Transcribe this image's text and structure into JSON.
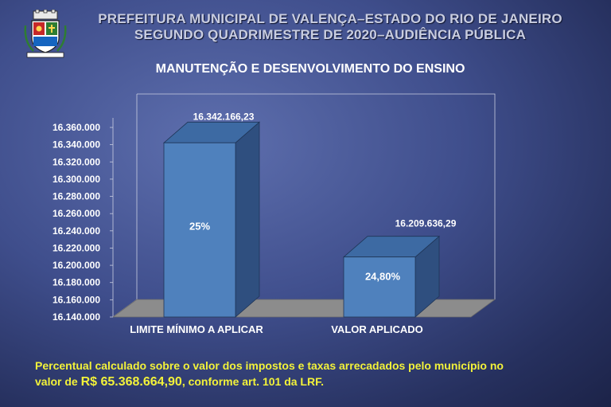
{
  "header": {
    "line1": "PREFEITURA MUNICIPAL DE VALENÇA–ESTADO DO RIO DE JANEIRO",
    "line2": "SEGUNDO QUADRIMESTRE DE 2020–AUDIÊNCIA PÚBLICA",
    "logo_icon": "municipal-coat-of-arms-icon"
  },
  "chart_data": {
    "type": "bar",
    "title": "MANUTENÇÃO E DESENVOLVIMENTO DO ENSINO",
    "categories": [
      "LIMITE MÍNIMO A APLICAR",
      "VALOR APLICADO"
    ],
    "values": [
      16342166.23,
      16209636.29
    ],
    "data_labels": [
      "16.342.166,23",
      "16.209.636,29"
    ],
    "inner_labels": [
      "25%",
      "24,80%"
    ],
    "y_ticks": [
      "16.140.000",
      "16.160.000",
      "16.180.000",
      "16.200.000",
      "16.220.000",
      "16.240.000",
      "16.260.000",
      "16.280.000",
      "16.300.000",
      "16.320.000",
      "16.340.000",
      "16.360.000"
    ],
    "ylim": [
      16140000,
      16360000
    ],
    "grid": false,
    "bar_color": "#4f81bd"
  },
  "footnote": {
    "line1": "Percentual calculado sobre o valor dos impostos e taxas arrecadados pelo município  no",
    "prefix": "valor de ",
    "amount": "R$ 65.368.664,90",
    "suffix": ", conforme art. 101 da LRF."
  }
}
